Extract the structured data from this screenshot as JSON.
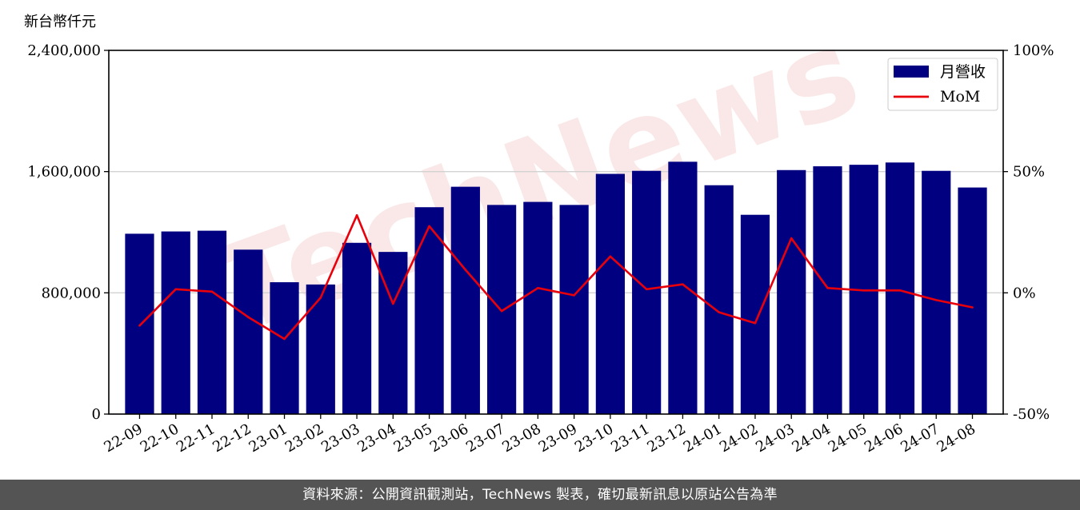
{
  "chart_data": {
    "type": "bar",
    "y_unit_label": "新台幣仟元",
    "categories": [
      "22-09",
      "22-10",
      "22-11",
      "22-12",
      "23-01",
      "23-02",
      "23-03",
      "23-04",
      "23-05",
      "23-06",
      "23-07",
      "23-08",
      "23-09",
      "23-10",
      "23-11",
      "23-12",
      "24-01",
      "24-02",
      "24-03",
      "24-04",
      "24-05",
      "24-06",
      "24-07",
      "24-08"
    ],
    "series": [
      {
        "name": "月營收",
        "type": "bar",
        "color": "#000080",
        "axis": "left",
        "values": [
          1190000,
          1205000,
          1210000,
          1085000,
          870000,
          855000,
          1130000,
          1070000,
          1365000,
          1500000,
          1380000,
          1400000,
          1380000,
          1585000,
          1605000,
          1665000,
          1510000,
          1315000,
          1610000,
          1635000,
          1645000,
          1660000,
          1605000,
          1495000
        ]
      },
      {
        "name": "MoM",
        "type": "line",
        "color": "#e8000b",
        "axis": "right",
        "values": [
          -13.5,
          1.5,
          0.5,
          -10,
          -19,
          -2,
          32,
          -4.5,
          27.5,
          9.5,
          -7.5,
          2,
          -1,
          15,
          1.5,
          3.5,
          -8,
          -12.5,
          22.5,
          2,
          1,
          1,
          -3,
          -6
        ]
      }
    ],
    "y_left": {
      "min": 0,
      "max": 2400000,
      "ticks": [
        0,
        800000,
        1600000,
        2400000
      ],
      "tick_labels": [
        "0",
        "800,000",
        "1,600,000",
        "2,400,000"
      ]
    },
    "y_right": {
      "min": -50,
      "max": 100,
      "ticks": [
        -50,
        0,
        50,
        100
      ],
      "tick_labels": [
        "-50%",
        "0%",
        "50%",
        "100%"
      ]
    },
    "grid": "horizontal",
    "legend_position": "top-right",
    "legend": [
      {
        "label": "月營收",
        "swatch": "bar",
        "color": "#000080"
      },
      {
        "label": "MoM",
        "swatch": "line",
        "color": "#e8000b"
      }
    ],
    "watermark_text": "TechNews"
  },
  "footer": {
    "text": "資料來源：公開資訊觀測站，TechNews 製表，確切最新訊息以原站公告為準"
  }
}
